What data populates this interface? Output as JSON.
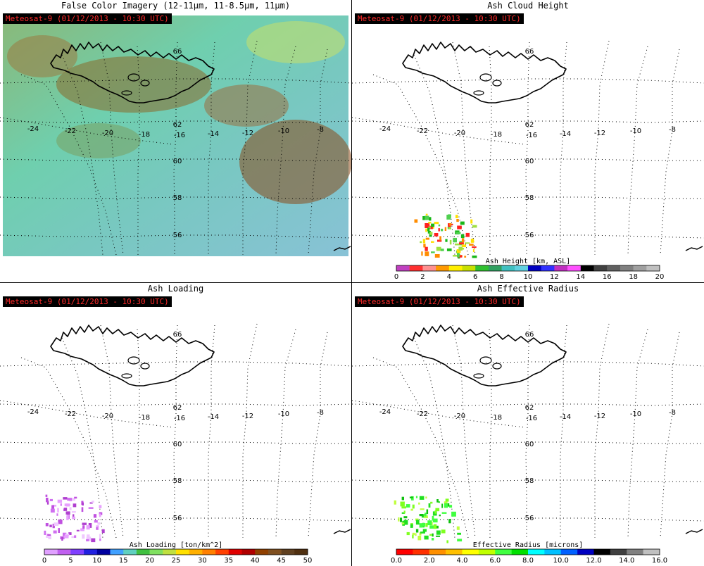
{
  "panels": [
    {
      "id": "false-color",
      "title": "False Color Imagery (12-11µm, 11-8.5µm, 11µm)",
      "badge": "Meteosat-9  (01/12/2013 - 10:30 UTC)",
      "background": "false-color",
      "colorbar": null
    },
    {
      "id": "ash-height",
      "title": "Ash Cloud Height",
      "badge": "Meteosat-9  (01/12/2013 - 10:30 UTC)",
      "background": "white",
      "plume_palette": [
        "#ff2020",
        "#ff8c00",
        "#ffe000",
        "#50d050",
        "#18b818",
        "#a0e040"
      ],
      "colorbar": {
        "title": "Ash Height [km, ASL]",
        "ticks": [
          "0",
          "2",
          "4",
          "6",
          "8",
          "10",
          "12",
          "14",
          "16",
          "18",
          "20"
        ],
        "colors": [
          "#c040c0",
          "#ff3030",
          "#ff9090",
          "#ff9900",
          "#ffee00",
          "#c8e000",
          "#30c030",
          "#30a060",
          "#40c0c0",
          "#60d0e0",
          "#0000c0",
          "#3030ff",
          "#c030c0",
          "#ff50ff",
          "#000000",
          "#404040",
          "#606060",
          "#808080",
          "#a0a0a0",
          "#c0c0c0"
        ]
      }
    },
    {
      "id": "ash-loading",
      "title": "Ash Loading",
      "badge": "Meteosat-9  (01/12/2013 - 10:30 UTC)",
      "background": "white",
      "plume_palette": [
        "#d070f0",
        "#e8a0ff",
        "#c050e0",
        "#f0c8ff",
        "#b040d0"
      ],
      "colorbar": {
        "title": "Ash Loading [ton/km^2]",
        "ticks": [
          "0",
          "5",
          "10",
          "15",
          "20",
          "25",
          "30",
          "35",
          "40",
          "45",
          "50"
        ],
        "colors": [
          "#e0a0ff",
          "#c060f0",
          "#8040ff",
          "#2020e0",
          "#0000a0",
          "#40a0ff",
          "#60d0c0",
          "#40c040",
          "#80e060",
          "#c0e040",
          "#ffe000",
          "#ffb000",
          "#ff8000",
          "#ff4000",
          "#e00000",
          "#b00000",
          "#904000",
          "#805020",
          "#604020",
          "#503010"
        ]
      }
    },
    {
      "id": "ash-radius",
      "title": "Ash Effective Radius",
      "badge": "Meteosat-9  (01/12/2013 - 10:30 UTC)",
      "background": "white",
      "plume_palette": [
        "#20e020",
        "#40ff40",
        "#80ff20",
        "#10c010",
        "#c0ff40"
      ],
      "colorbar": {
        "title": "Effective Radius [microns]",
        "ticks": [
          "0.0",
          "2.0",
          "4.0",
          "6.0",
          "8.0",
          "10.0",
          "12.0",
          "14.0",
          "16.0"
        ],
        "colors": [
          "#ff0000",
          "#ff3000",
          "#ff9000",
          "#ffc000",
          "#ffff00",
          "#c0ff00",
          "#40ff40",
          "#00e000",
          "#00ffff",
          "#00c0ff",
          "#0060ff",
          "#0000c0",
          "#000000",
          "#404040",
          "#808080",
          "#c0c0c0"
        ]
      }
    }
  ],
  "grid_labels": {
    "lon": [
      "-24",
      "-22",
      "-20",
      "-18",
      "-16",
      "-14",
      "-12",
      "-10",
      "-8"
    ],
    "lat": [
      "62",
      "60",
      "58",
      "56"
    ],
    "lat_top": "66"
  }
}
